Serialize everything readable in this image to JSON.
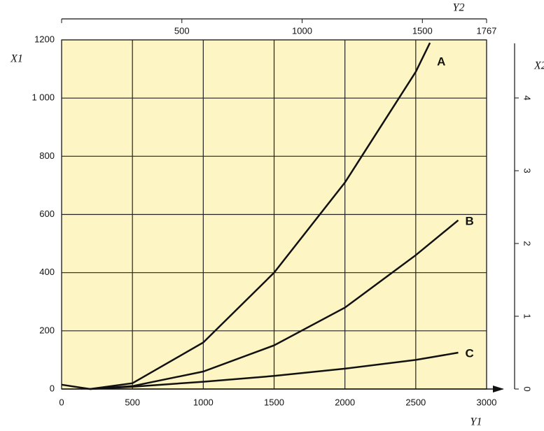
{
  "chart_data": {
    "type": "line",
    "xlabel": "Y1",
    "ylabel": "X1",
    "x2label": "Y2",
    "y2label": "X2",
    "xlim": [
      0,
      3000
    ],
    "xticks": [
      0,
      500,
      1000,
      1500,
      2000,
      2500,
      3000
    ],
    "ylim": [
      0,
      1200
    ],
    "yticks": [
      0,
      200,
      400,
      600,
      800,
      {
        "value": 1000,
        "label": "1 000"
      },
      1200
    ],
    "x2lim": [
      0,
      1767
    ],
    "x2ticks": [
      500,
      1000,
      1500,
      1767
    ],
    "y2lim": [
      0,
      4.75
    ],
    "y2ticks": [
      0,
      1,
      2,
      3,
      4
    ],
    "grid": true,
    "background": "#fdf5c4",
    "series": [
      {
        "name": "A",
        "color": "#111111",
        "x": [
          200,
          500,
          1000,
          1500,
          2000,
          2500,
          2600
        ],
        "values": [
          0,
          20,
          160,
          400,
          710,
          1090,
          1190
        ]
      },
      {
        "name": "B",
        "color": "#111111",
        "x": [
          200,
          500,
          1000,
          1500,
          2000,
          2500,
          2800
        ],
        "values": [
          0,
          10,
          60,
          150,
          280,
          460,
          580
        ]
      },
      {
        "name": "C",
        "color": "#111111",
        "x": [
          0,
          200,
          500,
          1000,
          1500,
          2000,
          2500,
          2800
        ],
        "values": [
          15,
          0,
          8,
          25,
          45,
          70,
          100,
          125
        ]
      }
    ]
  }
}
